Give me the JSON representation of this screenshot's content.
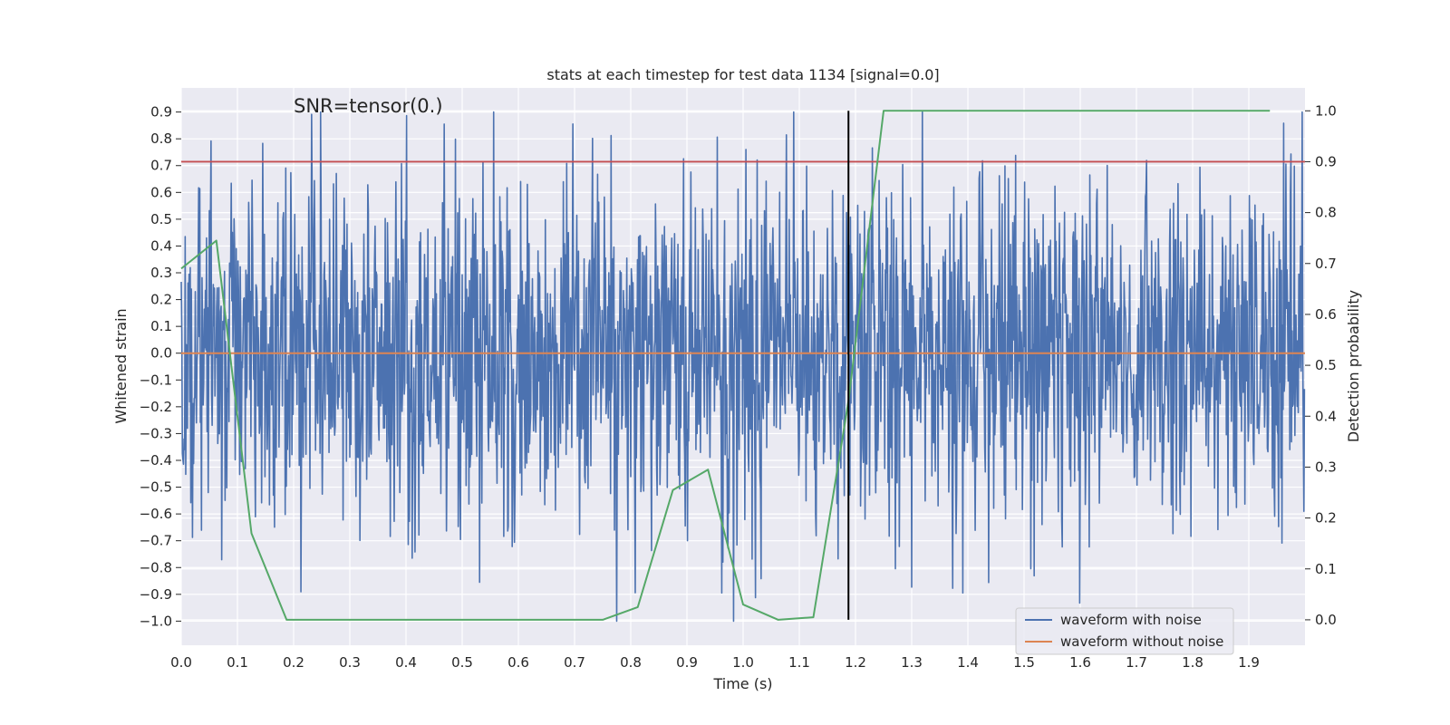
{
  "chart_data": {
    "type": "line",
    "title": "stats at each timestep for test data 1134 [signal=0.0]",
    "xlabel": "Time (s)",
    "ylabel": "Whitened strain",
    "y2label": "Detection probability",
    "annotation": "SNR=tensor(0.)",
    "xlim": [
      0.0,
      2.0
    ],
    "ylim": [
      -1.09,
      0.99
    ],
    "y2lim": [
      -0.05,
      1.045
    ],
    "grid": true,
    "xticks": [
      0.0,
      0.1,
      0.2,
      0.3,
      0.4,
      0.5,
      0.6,
      0.7,
      0.8,
      0.9,
      1.0,
      1.1,
      1.2,
      1.3,
      1.4,
      1.5,
      1.6,
      1.7,
      1.8,
      1.9
    ],
    "xtick_labels": [
      "0.0",
      "0.1",
      "0.2",
      "0.3",
      "0.4",
      "0.5",
      "0.6",
      "0.7",
      "0.8",
      "0.9",
      "1.0",
      "1.1",
      "1.2",
      "1.3",
      "1.4",
      "1.5",
      "1.6",
      "1.7",
      "1.8",
      "1.9"
    ],
    "yticks": [
      0.9,
      0.8,
      0.7,
      0.6,
      0.5,
      0.4,
      0.3,
      0.2,
      0.1,
      0.0,
      -0.1,
      -0.2,
      -0.3,
      -0.4,
      -0.5,
      -0.6,
      -0.7,
      -0.8,
      -0.9,
      -1.0
    ],
    "ytick_labels": [
      "0.9",
      "0.8",
      "0.7",
      "0.6",
      "0.5",
      "0.4",
      "0.3",
      "0.2",
      "0.1",
      "0.0",
      "−0.1",
      "−0.2",
      "−0.3",
      "−0.4",
      "−0.5",
      "−0.6",
      "−0.7",
      "−0.8",
      "−0.9",
      "−1.0"
    ],
    "y2ticks": [
      1.0,
      0.9,
      0.8,
      0.7,
      0.6,
      0.5,
      0.4,
      0.3,
      0.2,
      0.1,
      0.0
    ],
    "y2tick_labels": [
      "1.0",
      "0.9",
      "0.8",
      "0.7",
      "0.6",
      "0.5",
      "0.4",
      "0.3",
      "0.2",
      "0.1",
      "0.0"
    ],
    "series": [
      {
        "name": "waveform with noise",
        "axis": "left",
        "color": "#4c72b0",
        "generated": true,
        "sample_count": 2000,
        "seed": 1134,
        "noise_std": 0.33,
        "clip": [
          -1.0,
          0.9
        ]
      },
      {
        "name": "waveform without noise",
        "axis": "left",
        "color": "#dd8452",
        "x": [
          0.0,
          2.0
        ],
        "y": [
          0.0,
          0.0
        ]
      },
      {
        "name": "detection probability",
        "axis": "right",
        "color": "#55a868",
        "x": [
          0.0,
          0.0625,
          0.125,
          0.1875,
          0.25,
          0.3125,
          0.375,
          0.4375,
          0.5,
          0.5625,
          0.625,
          0.6875,
          0.75,
          0.8125,
          0.875,
          0.9375,
          1.0,
          1.0625,
          1.125,
          1.1875,
          1.25,
          1.3125,
          1.375,
          1.4375,
          1.5,
          1.5625,
          1.625,
          1.6875,
          1.75,
          1.8125,
          1.875,
          1.9375
        ],
        "y": [
          0.69,
          0.745,
          0.17,
          0.0,
          0.0,
          0.0,
          0.0,
          0.0,
          0.0,
          0.0,
          0.0,
          0.0,
          0.0,
          0.025,
          0.255,
          0.295,
          0.03,
          0.0,
          0.005,
          0.43,
          1.0,
          1.0,
          1.0,
          1.0,
          1.0,
          1.0,
          1.0,
          1.0,
          1.0,
          1.0,
          1.0,
          1.0
        ]
      }
    ],
    "threshold_line": {
      "axis": "right",
      "value": 0.9,
      "color": "#c44e52"
    },
    "vertical_line": {
      "x": 1.1875,
      "color": "#000000"
    },
    "legend": {
      "position": "lower-right",
      "entries": [
        {
          "label": "waveform with noise",
          "color": "#4c72b0"
        },
        {
          "label": "waveform without noise",
          "color": "#dd8452"
        }
      ]
    },
    "colors": {
      "background": "#eaeaf2",
      "grid": "#ffffff",
      "text": "#262626"
    }
  }
}
